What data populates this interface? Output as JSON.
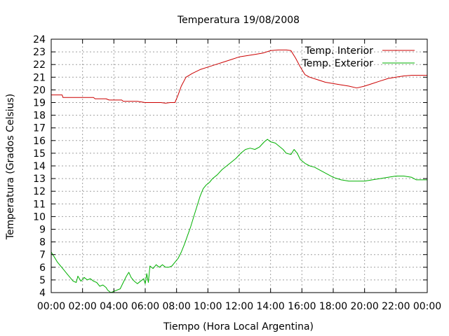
{
  "chart_data": {
    "type": "line",
    "title": "Temperatura 19/08/2008",
    "xlabel": "Tiempo (Hora Local Argentina)",
    "ylabel": "Temperatura (Grados Celsius)",
    "xlim": [
      0,
      24
    ],
    "ylim": [
      4,
      24
    ],
    "x_ticks": [
      "00:00",
      "02:00",
      "04:00",
      "06:00",
      "08:00",
      "10:00",
      "12:00",
      "14:00",
      "16:00",
      "18:00",
      "20:00",
      "22:00",
      "00:00"
    ],
    "y_ticks": [
      4,
      5,
      6,
      7,
      8,
      9,
      10,
      11,
      12,
      13,
      14,
      15,
      16,
      17,
      18,
      19,
      20,
      21,
      22,
      23,
      24
    ],
    "grid": true,
    "legend_position": "top-right",
    "series": [
      {
        "name": "Temp. Interior",
        "color": "#cc0000",
        "points": [
          [
            0.0,
            19.6
          ],
          [
            0.7,
            19.6
          ],
          [
            0.75,
            19.4
          ],
          [
            1.5,
            19.4
          ],
          [
            2.0,
            19.4
          ],
          [
            2.7,
            19.4
          ],
          [
            2.8,
            19.3
          ],
          [
            3.5,
            19.3
          ],
          [
            3.7,
            19.2
          ],
          [
            4.5,
            19.2
          ],
          [
            4.6,
            19.1
          ],
          [
            5.5,
            19.1
          ],
          [
            6.0,
            19.0
          ],
          [
            7.0,
            19.0
          ],
          [
            7.3,
            18.95
          ],
          [
            7.6,
            19.0
          ],
          [
            7.9,
            19.0
          ],
          [
            8.1,
            19.6
          ],
          [
            8.3,
            20.3
          ],
          [
            8.6,
            21.0
          ],
          [
            9.0,
            21.3
          ],
          [
            9.5,
            21.6
          ],
          [
            10.0,
            21.8
          ],
          [
            10.5,
            22.0
          ],
          [
            11.0,
            22.2
          ],
          [
            11.5,
            22.4
          ],
          [
            12.0,
            22.6
          ],
          [
            12.5,
            22.7
          ],
          [
            13.0,
            22.8
          ],
          [
            13.5,
            22.9
          ],
          [
            14.0,
            23.1
          ],
          [
            14.5,
            23.15
          ],
          [
            15.0,
            23.15
          ],
          [
            15.3,
            23.1
          ],
          [
            15.6,
            22.5
          ],
          [
            15.9,
            21.8
          ],
          [
            16.2,
            21.2
          ],
          [
            16.5,
            21.0
          ],
          [
            17.0,
            20.8
          ],
          [
            17.5,
            20.6
          ],
          [
            18.0,
            20.5
          ],
          [
            18.5,
            20.4
          ],
          [
            19.0,
            20.3
          ],
          [
            19.5,
            20.15
          ],
          [
            20.0,
            20.3
          ],
          [
            20.5,
            20.5
          ],
          [
            21.0,
            20.7
          ],
          [
            21.5,
            20.9
          ],
          [
            22.0,
            21.0
          ],
          [
            22.5,
            21.1
          ],
          [
            23.0,
            21.15
          ],
          [
            24.0,
            21.15
          ]
        ]
      },
      {
        "name": "Temp. Exterior",
        "color": "#00b000",
        "points": [
          [
            0.0,
            7.2
          ],
          [
            0.2,
            6.8
          ],
          [
            0.4,
            6.4
          ],
          [
            0.6,
            6.1
          ],
          [
            0.8,
            5.8
          ],
          [
            1.0,
            5.5
          ],
          [
            1.2,
            5.2
          ],
          [
            1.4,
            4.9
          ],
          [
            1.6,
            4.8
          ],
          [
            1.7,
            5.3
          ],
          [
            1.9,
            4.9
          ],
          [
            2.1,
            5.2
          ],
          [
            2.3,
            5.0
          ],
          [
            2.5,
            5.1
          ],
          [
            2.7,
            4.9
          ],
          [
            2.9,
            4.8
          ],
          [
            3.1,
            4.5
          ],
          [
            3.3,
            4.6
          ],
          [
            3.5,
            4.4
          ],
          [
            3.6,
            4.2
          ],
          [
            3.8,
            4.0
          ],
          [
            4.0,
            4.1
          ],
          [
            4.2,
            4.2
          ],
          [
            4.4,
            4.3
          ],
          [
            4.6,
            4.8
          ],
          [
            4.8,
            5.3
          ],
          [
            4.95,
            5.6
          ],
          [
            5.1,
            5.2
          ],
          [
            5.3,
            4.9
          ],
          [
            5.5,
            4.7
          ],
          [
            5.7,
            4.9
          ],
          [
            5.9,
            5.1
          ],
          [
            6.0,
            4.7
          ],
          [
            6.1,
            5.5
          ],
          [
            6.2,
            4.8
          ],
          [
            6.3,
            6.1
          ],
          [
            6.5,
            5.9
          ],
          [
            6.7,
            6.2
          ],
          [
            6.9,
            6.0
          ],
          [
            7.1,
            6.2
          ],
          [
            7.3,
            6.0
          ],
          [
            7.5,
            6.0
          ],
          [
            7.7,
            6.1
          ],
          [
            7.9,
            6.4
          ],
          [
            8.1,
            6.7
          ],
          [
            8.3,
            7.2
          ],
          [
            8.5,
            7.8
          ],
          [
            8.7,
            8.5
          ],
          [
            8.9,
            9.2
          ],
          [
            9.1,
            10.0
          ],
          [
            9.3,
            10.8
          ],
          [
            9.5,
            11.6
          ],
          [
            9.7,
            12.2
          ],
          [
            9.9,
            12.5
          ],
          [
            10.1,
            12.7
          ],
          [
            10.3,
            13.0
          ],
          [
            10.6,
            13.3
          ],
          [
            10.9,
            13.7
          ],
          [
            11.2,
            14.0
          ],
          [
            11.5,
            14.3
          ],
          [
            11.8,
            14.6
          ],
          [
            12.1,
            15.0
          ],
          [
            12.4,
            15.3
          ],
          [
            12.7,
            15.4
          ],
          [
            13.0,
            15.3
          ],
          [
            13.3,
            15.5
          ],
          [
            13.6,
            15.9
          ],
          [
            13.8,
            16.1
          ],
          [
            14.0,
            15.9
          ],
          [
            14.3,
            15.8
          ],
          [
            14.5,
            15.6
          ],
          [
            14.8,
            15.3
          ],
          [
            15.0,
            15.0
          ],
          [
            15.3,
            14.9
          ],
          [
            15.5,
            15.3
          ],
          [
            15.7,
            15.0
          ],
          [
            15.9,
            14.5
          ],
          [
            16.2,
            14.2
          ],
          [
            16.5,
            14.0
          ],
          [
            16.8,
            13.9
          ],
          [
            17.1,
            13.7
          ],
          [
            17.4,
            13.5
          ],
          [
            17.7,
            13.3
          ],
          [
            18.0,
            13.1
          ],
          [
            18.5,
            12.9
          ],
          [
            19.0,
            12.8
          ],
          [
            19.5,
            12.8
          ],
          [
            20.0,
            12.8
          ],
          [
            20.5,
            12.9
          ],
          [
            21.0,
            13.0
          ],
          [
            21.5,
            13.1
          ],
          [
            22.0,
            13.2
          ],
          [
            22.5,
            13.2
          ],
          [
            23.0,
            13.1
          ],
          [
            23.3,
            12.9
          ],
          [
            23.6,
            12.9
          ],
          [
            24.0,
            12.9
          ]
        ]
      }
    ]
  }
}
